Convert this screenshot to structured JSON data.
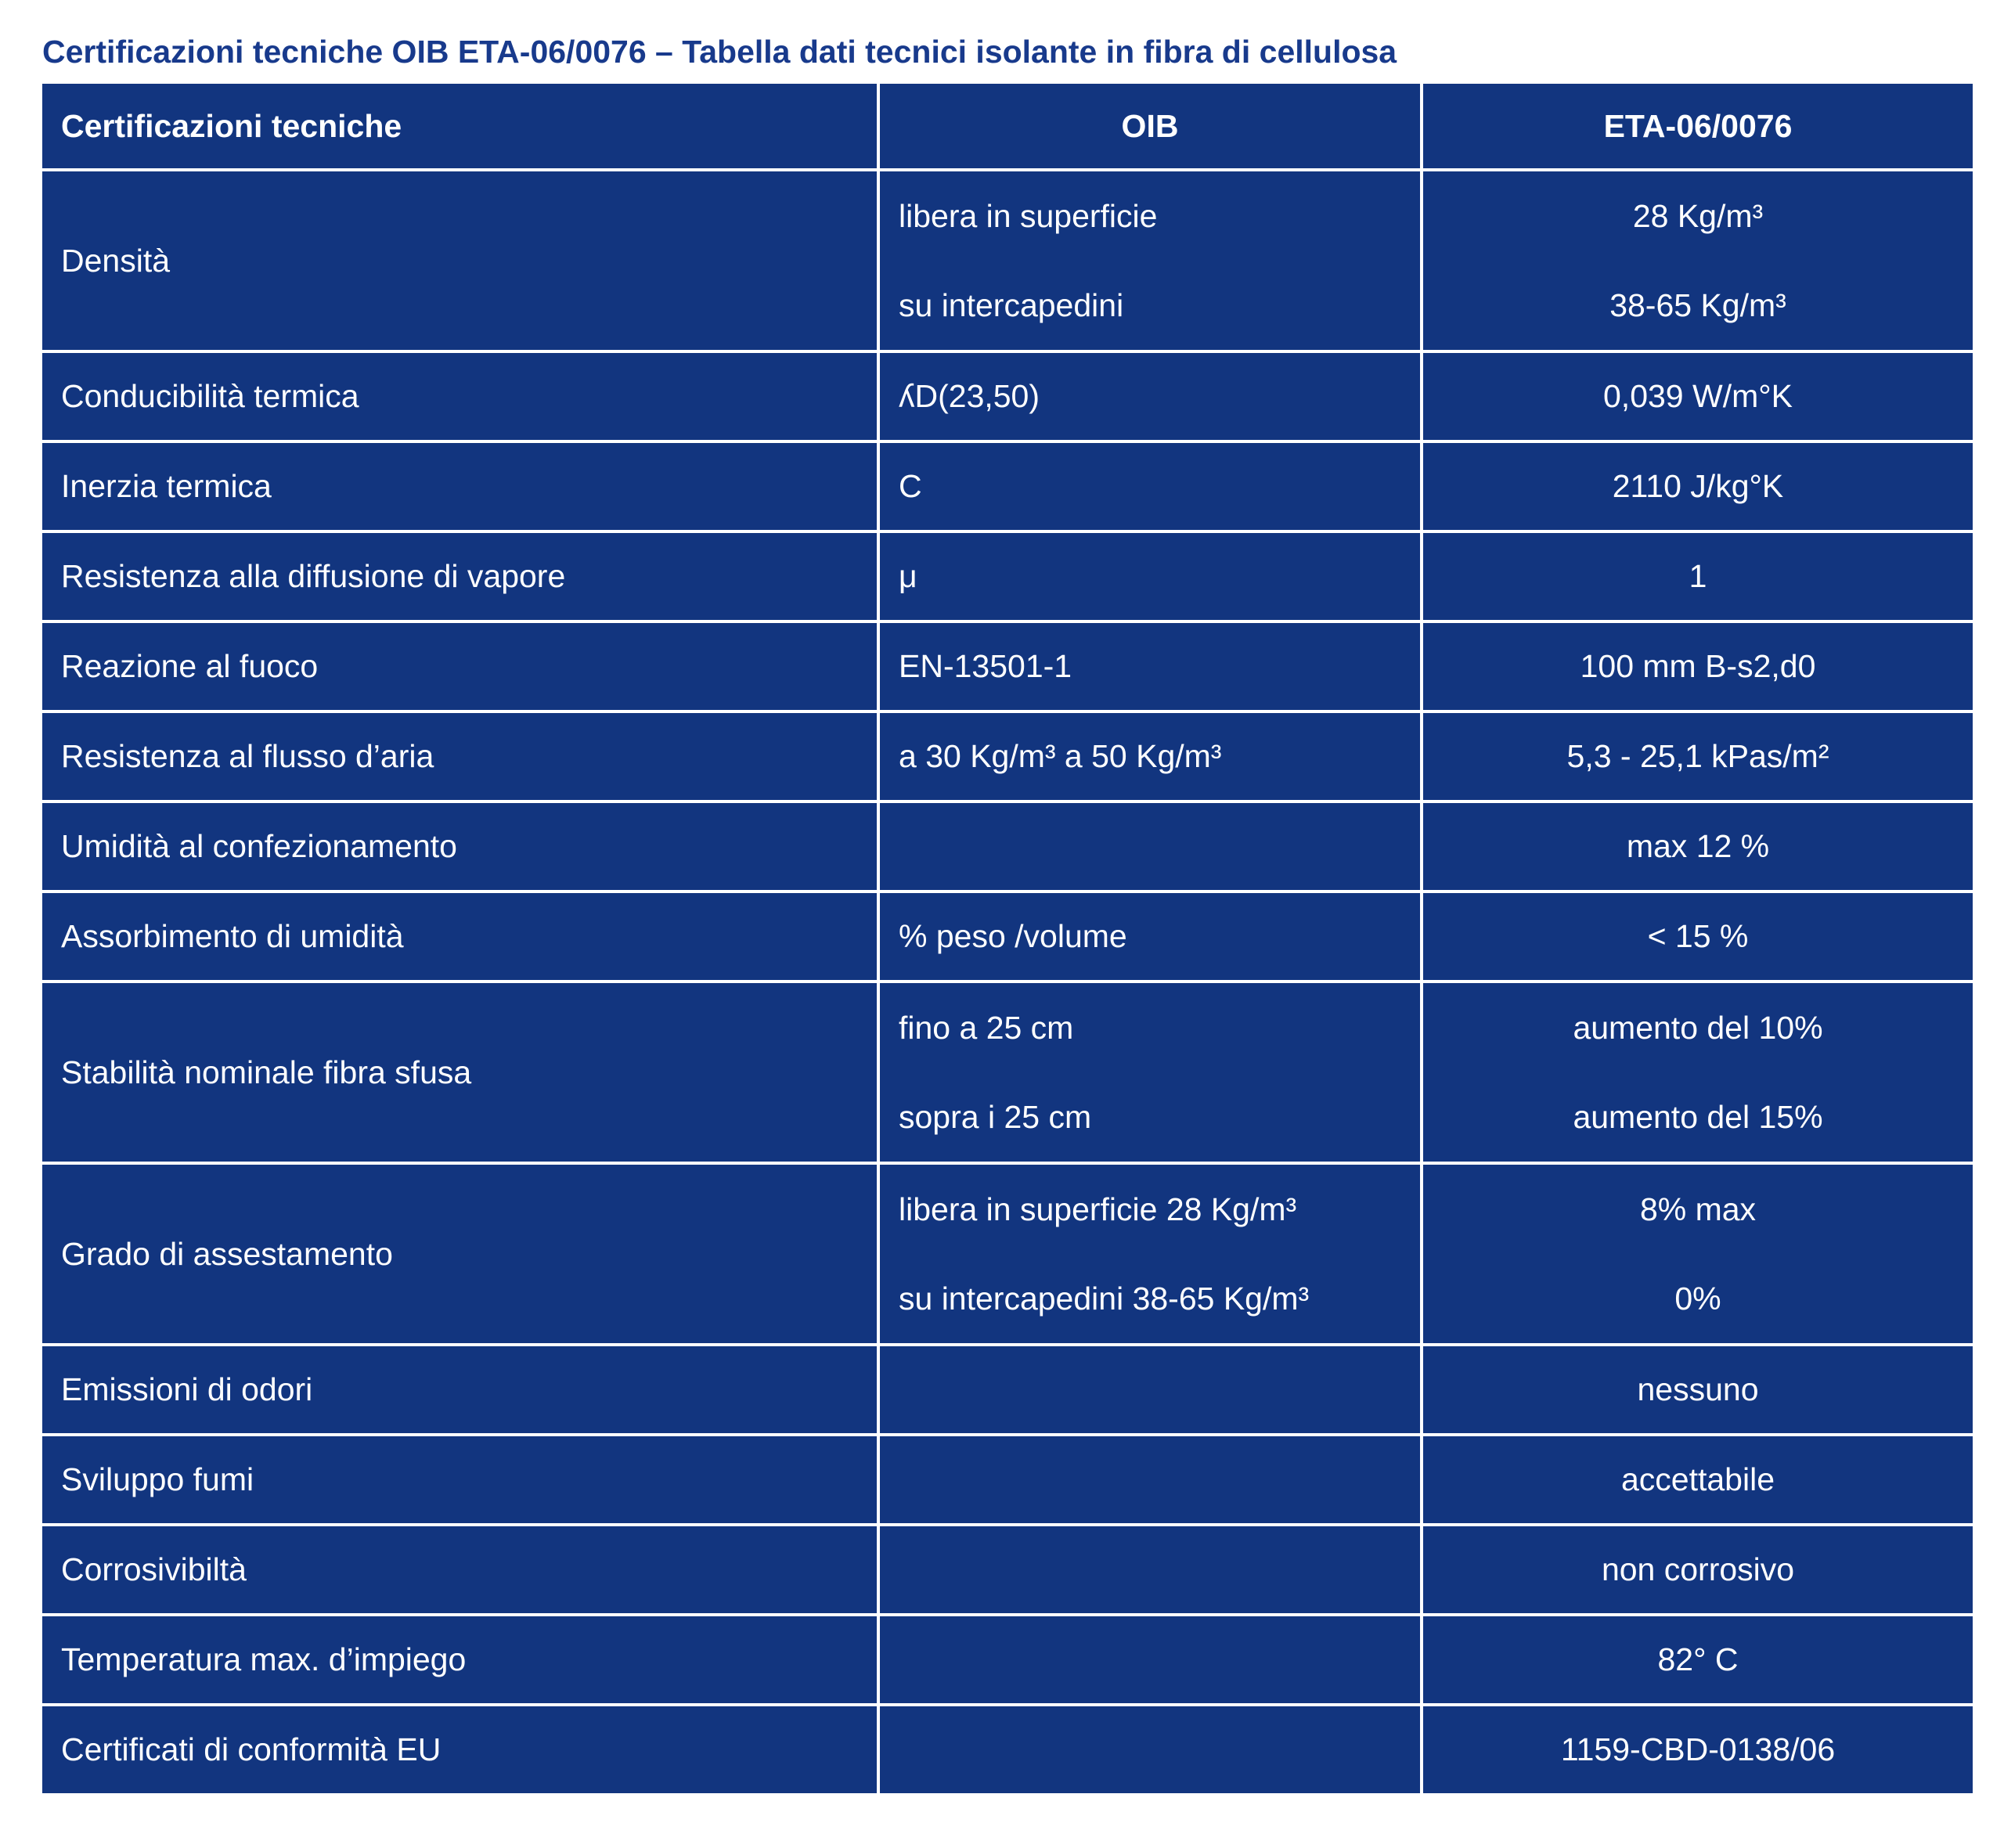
{
  "title": "Certificazioni tecniche OIB ETA-06/0076 – Tabella dati tecnici isolante in fibra di cellulosa",
  "colors": {
    "title": "#183a8c",
    "table_background": "#12357f",
    "text": "#ffffff",
    "grid": "#ffffff"
  },
  "headers": [
    "Certificazioni tecniche",
    "OIB",
    "ETA-06/0076"
  ],
  "rows": [
    {
      "label": "Densità",
      "oib": [
        "libera in superficie",
        "su intercapedini"
      ],
      "eta": [
        "28  Kg/m³",
        "38-65  Kg/m³"
      ]
    },
    {
      "label": "Conducibilità termica",
      "oib": [
        "ʎD(23,50)"
      ],
      "eta": [
        "0,039  W/m°K"
      ]
    },
    {
      "label": "Inerzia termica",
      "oib": [
        "C"
      ],
      "eta": [
        "2110  J/kg°K"
      ]
    },
    {
      "label": "Resistenza alla diffusione di vapore",
      "oib": [
        "μ"
      ],
      "eta": [
        "1"
      ]
    },
    {
      "label": "Reazione al fuoco",
      "oib": [
        "EN-13501-1"
      ],
      "eta": [
        "100 mm   B-s2,d0"
      ]
    },
    {
      "label": "Resistenza al flusso d’aria",
      "oib": [
        "a 30 Kg/m³ a 50 Kg/m³"
      ],
      "eta": [
        "5,3 - 25,1  kPas/m²"
      ]
    },
    {
      "label": "Umidità al confezionamento",
      "oib": [
        ""
      ],
      "eta": [
        "max 12 %"
      ]
    },
    {
      "label": "Assorbimento di umidità",
      "oib": [
        "% peso /volume"
      ],
      "eta": [
        "< 15 %"
      ]
    },
    {
      "label": "Stabilità nominale fibra sfusa",
      "oib": [
        "fino a 25 cm",
        "sopra i 25 cm"
      ],
      "eta": [
        "aumento del 10%",
        "aumento del 15%"
      ]
    },
    {
      "label": "Grado di assestamento",
      "oib": [
        "libera in superficie  28  Kg/m³",
        "su intercapedini 38-65  Kg/m³"
      ],
      "eta": [
        "8% max",
        "0%"
      ]
    },
    {
      "label": "Emissioni di odori",
      "oib": [
        ""
      ],
      "eta": [
        "nessuno"
      ]
    },
    {
      "label": "Sviluppo fumi",
      "oib": [
        ""
      ],
      "eta": [
        "accettabile"
      ]
    },
    {
      "label": "Corrosivibiltà",
      "oib": [
        ""
      ],
      "eta": [
        "non corrosivo"
      ]
    },
    {
      "label": "Temperatura max. d’impiego",
      "oib": [
        ""
      ],
      "eta": [
        "82° C"
      ]
    },
    {
      "label": "Certificati di conformità EU",
      "oib": [
        ""
      ],
      "eta": [
        "1159-CBD-0138/06"
      ]
    }
  ]
}
